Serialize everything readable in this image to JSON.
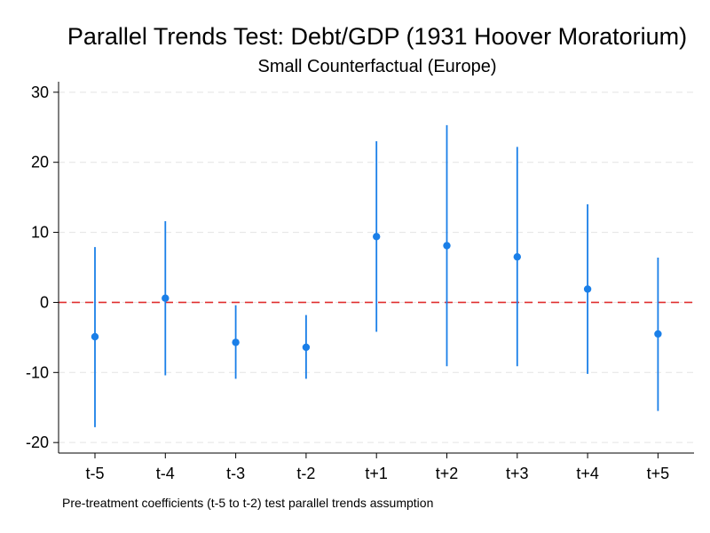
{
  "chart_data": {
    "type": "scatter",
    "title": "Parallel Trends Test: Debt/GDP (1931 Hoover Moratorium)",
    "subtitle": "Small Counterfactual (Europe)",
    "note": "Pre-treatment coefficients (t-5 to t-2) test parallel trends assumption",
    "xlabel": "",
    "ylabel": "",
    "categories": [
      "t-5",
      "t-4",
      "t-3",
      "t-2",
      "t+1",
      "t+2",
      "t+3",
      "t+4",
      "t+5"
    ],
    "series": [
      {
        "estimate": [
          -4.9,
          0.6,
          -5.7,
          -6.4,
          9.4,
          8.1,
          6.5,
          1.9,
          -4.5
        ],
        "ci_lower": [
          -17.8,
          -10.4,
          -10.9,
          -10.9,
          -4.2,
          -9.1,
          -9.1,
          -10.2,
          -15.5
        ],
        "ci_upper": [
          7.9,
          11.6,
          -0.4,
          -1.8,
          23.0,
          25.3,
          22.2,
          14.0,
          6.4
        ]
      }
    ],
    "yticks": [
      -20,
      -10,
      0,
      10,
      20,
      30
    ],
    "ylim": [
      -21.5,
      31.5
    ],
    "reference_line": 0,
    "grid": "horizontal dashed",
    "colors": {
      "point": "#1a7fe8",
      "interval": "#1a7fe8",
      "reference": "#e03030",
      "grid": "#e4e4e4",
      "axis": "#000000"
    }
  }
}
